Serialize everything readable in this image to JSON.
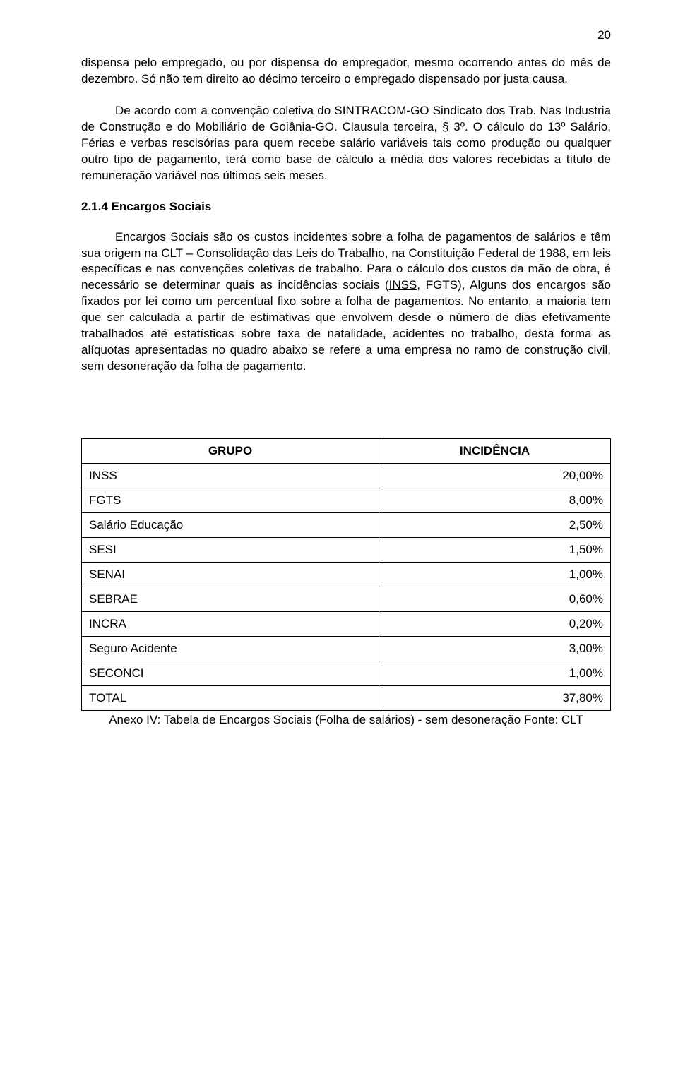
{
  "page_number": "20",
  "para1": "dispensa pelo empregado, ou por dispensa do empregador, mesmo ocorrendo antes do mês de dezembro. Só não tem direito ao décimo terceiro o empregado dispensado por justa causa.",
  "para2": "De acordo com a convenção coletiva do SINTRACOM-GO Sindicato dos Trab. Nas Industria de Construção e do Mobiliário de Goiânia-GO. Clausula terceira, § 3º. O cálculo do 13º Salário, Férias e verbas rescisórias para quem recebe salário variáveis tais como produção ou qualquer outro tipo de pagamento, terá como base de cálculo a média dos valores recebidas a título de remuneração variável nos últimos seis meses.",
  "heading": "2.1.4 Encargos Sociais",
  "para3a": "Encargos Sociais são os custos incidentes sobre a folha de pagamentos de salários e têm sua origem na CLT – Consolidação das Leis do Trabalho, na Constituição Federal de 1988, em leis específicas e nas convenções coletivas de trabalho. Para o cálculo dos custos da mão de obra, é necessário se determinar quais as incidências sociais (",
  "inss_link": "INSS",
  "para3b": ", FGTS), Alguns dos encargos são fixados por lei como um percentual fixo sobre a folha de pagamentos. No entanto, a maioria tem que ser calculada a partir de estimativas que envolvem desde o número de dias efetivamente trabalhados até estatísticas sobre taxa de natalidade, acidentes no trabalho, desta forma as alíquotas apresentadas no quadro abaixo se refere a uma empresa no ramo de construção civil, sem desoneração da folha de pagamento.",
  "table": {
    "header_grupo": "GRUPO",
    "header_incidencia": "INCIDÊNCIA",
    "rows": [
      {
        "grupo": "INSS",
        "valor": "20,00%"
      },
      {
        "grupo": "FGTS",
        "valor": "8,00%"
      },
      {
        "grupo": "Salário Educação",
        "valor": "2,50%"
      },
      {
        "grupo": "SESI",
        "valor": "1,50%"
      },
      {
        "grupo": "SENAI",
        "valor": "1,00%"
      },
      {
        "grupo": "SEBRAE",
        "valor": "0,60%"
      },
      {
        "grupo": "INCRA",
        "valor": "0,20%"
      },
      {
        "grupo": "Seguro Acidente",
        "valor": "3,00%"
      },
      {
        "grupo": "SECONCI",
        "valor": "1,00%"
      },
      {
        "grupo": "TOTAL",
        "valor": "37,80%"
      }
    ],
    "caption": "Anexo IV: Tabela de Encargos Sociais (Folha de salários) - sem desoneração Fonte: CLT"
  }
}
